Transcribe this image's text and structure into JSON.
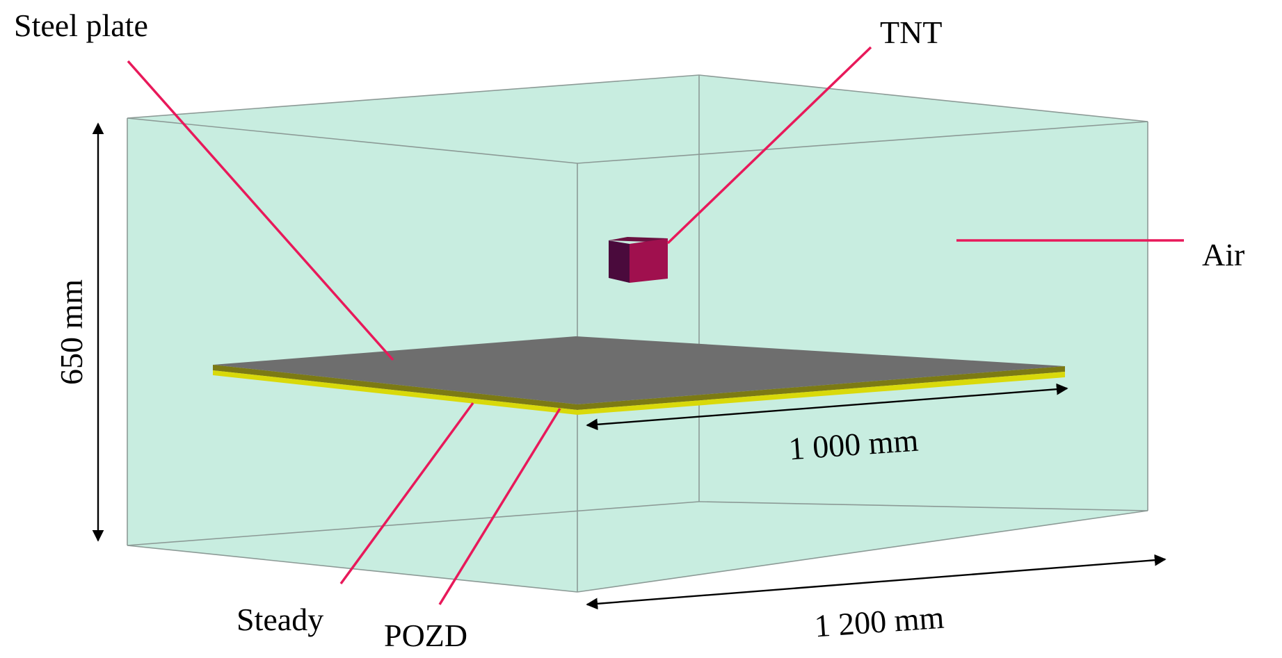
{
  "labels": {
    "steel_plate": "Steel plate",
    "tnt": "TNT",
    "air": "Air",
    "steady": "Steady",
    "pozd": "POZD"
  },
  "dimensions": {
    "height": "650 mm",
    "plate_width": "1 000 mm",
    "domain_width": "1 200 mm"
  },
  "colors": {
    "air_fill": "#c8ede0",
    "air_edge": "#8c9a96",
    "leader": "#e8195a",
    "tnt_front": "#4a0a3c",
    "tnt_side": "#a0104e",
    "plate_top": "#6e6e6e",
    "plate_steady": "#d9d90a",
    "plate_pozd": "#7c7a14",
    "dimension": "#000000"
  }
}
